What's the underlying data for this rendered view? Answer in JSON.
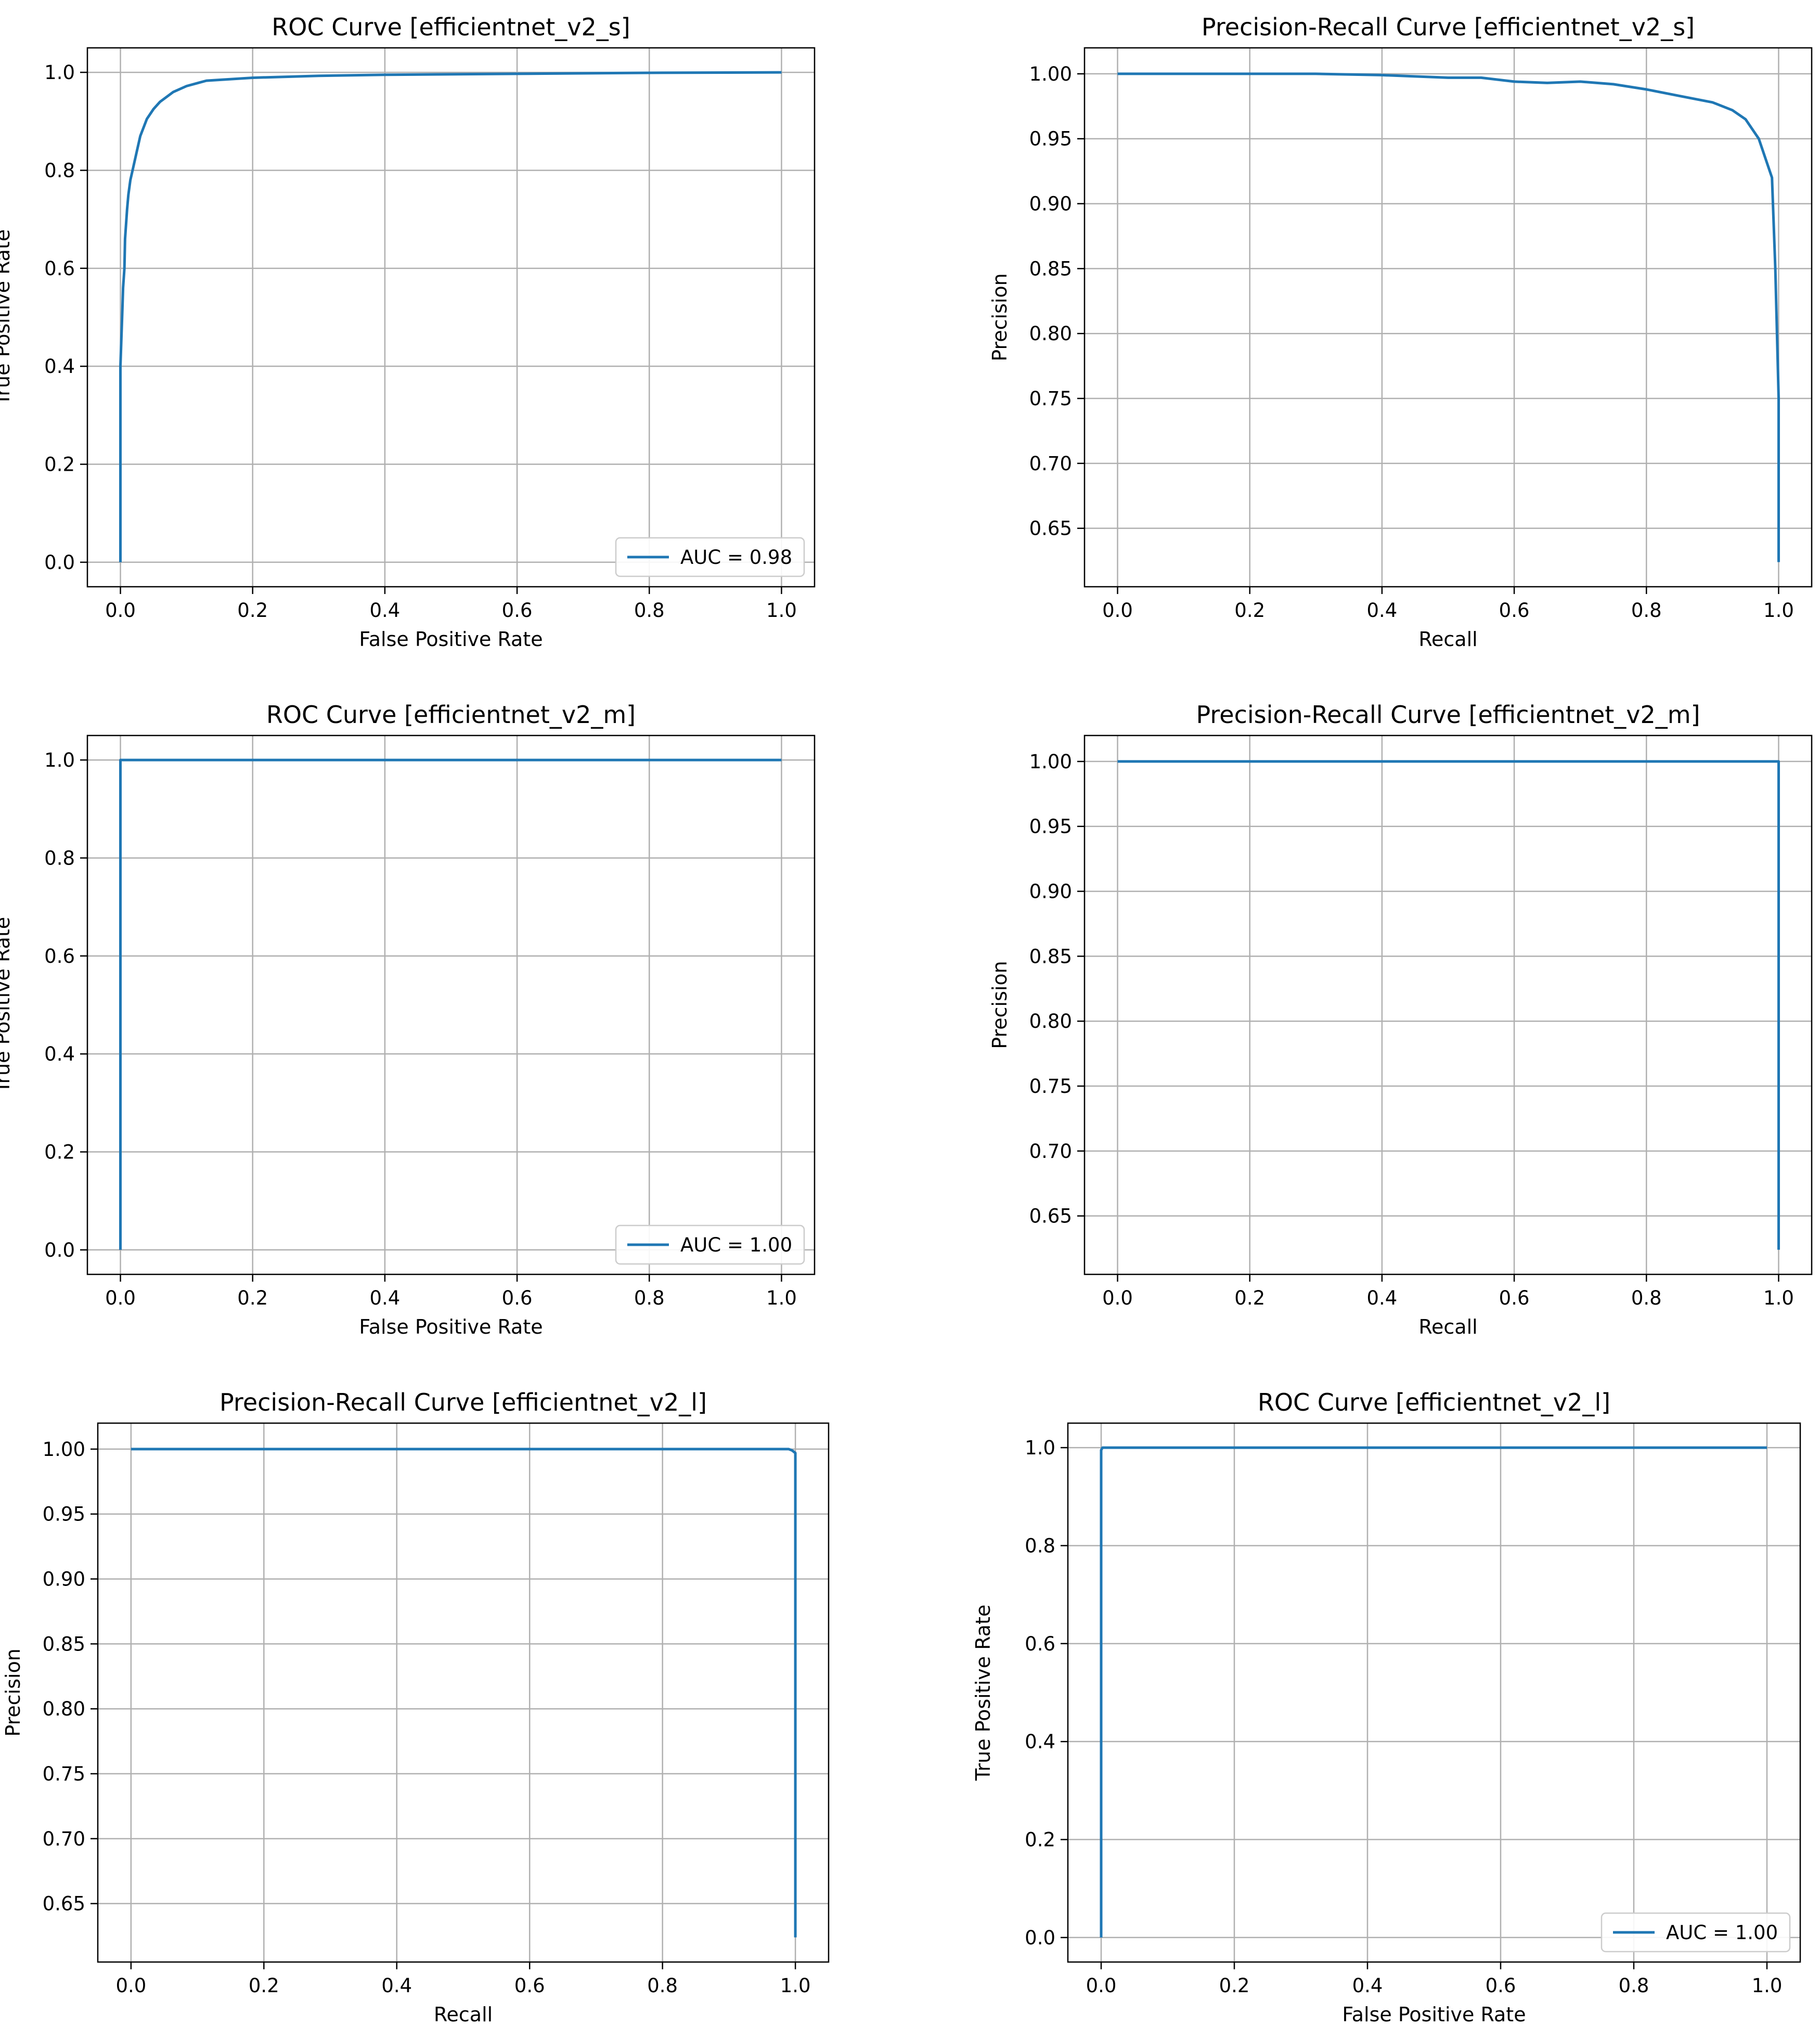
{
  "figure": {
    "background": "#ffffff",
    "line_color": "#1f77b4",
    "grid_color": "#b0b0b0"
  },
  "chart_data": [
    {
      "type": "line",
      "title": "ROC Curve [efficientnet_v2_s]",
      "xlabel": "False Positive Rate",
      "ylabel": "True Positive Rate",
      "xlim": [
        -0.05,
        1.05
      ],
      "ylim": [
        -0.05,
        1.05
      ],
      "xticks": [
        0.0,
        0.2,
        0.4,
        0.6,
        0.8,
        1.0
      ],
      "xtick_labels": [
        "0.0",
        "0.2",
        "0.4",
        "0.6",
        "0.8",
        "1.0"
      ],
      "yticks": [
        0.0,
        0.2,
        0.4,
        0.6,
        0.8,
        1.0
      ],
      "ytick_labels": [
        "0.0",
        "0.2",
        "0.4",
        "0.6",
        "0.8",
        "1.0"
      ],
      "grid": true,
      "legend_position": "lower-right",
      "series": [
        {
          "name": "AUC = 0.98",
          "color": "#1f77b4",
          "x": [
            0,
            0,
            0.003,
            0.004,
            0.006,
            0.007,
            0.01,
            0.012,
            0.015,
            0.02,
            0.025,
            0.03,
            0.04,
            0.05,
            0.06,
            0.08,
            0.1,
            0.13,
            0.2,
            0.3,
            0.4,
            0.6,
            0.8,
            1.0
          ],
          "y": [
            0,
            0.4,
            0.52,
            0.56,
            0.6,
            0.66,
            0.72,
            0.75,
            0.78,
            0.81,
            0.84,
            0.87,
            0.905,
            0.925,
            0.94,
            0.96,
            0.972,
            0.983,
            0.989,
            0.993,
            0.995,
            0.997,
            0.999,
            1.0
          ]
        }
      ]
    },
    {
      "type": "line",
      "title": "Precision-Recall Curve [efficientnet_v2_s]",
      "xlabel": "Recall",
      "ylabel": "Precision",
      "xlim": [
        -0.05,
        1.05
      ],
      "ylim": [
        0.605,
        1.02
      ],
      "xticks": [
        0.0,
        0.2,
        0.4,
        0.6,
        0.8,
        1.0
      ],
      "xtick_labels": [
        "0.0",
        "0.2",
        "0.4",
        "0.6",
        "0.8",
        "1.0"
      ],
      "yticks": [
        0.65,
        0.7,
        0.75,
        0.8,
        0.85,
        0.9,
        0.95,
        1.0
      ],
      "ytick_labels": [
        "0.65",
        "0.70",
        "0.75",
        "0.80",
        "0.85",
        "0.90",
        "0.95",
        "1.00"
      ],
      "grid": true,
      "series": [
        {
          "color": "#1f77b4",
          "x": [
            0,
            0.3,
            0.4,
            0.5,
            0.55,
            0.6,
            0.65,
            0.7,
            0.75,
            0.8,
            0.85,
            0.9,
            0.93,
            0.95,
            0.97,
            0.98,
            0.99,
            0.995,
            1.0,
            1.0
          ],
          "y": [
            1.0,
            1.0,
            0.999,
            0.997,
            0.997,
            0.994,
            0.993,
            0.994,
            0.992,
            0.988,
            0.983,
            0.978,
            0.972,
            0.965,
            0.95,
            0.935,
            0.92,
            0.85,
            0.75,
            0.624
          ]
        }
      ]
    },
    {
      "type": "line",
      "title": "ROC Curve [efficientnet_v2_m]",
      "xlabel": "False Positive Rate",
      "ylabel": "True Positive Rate",
      "xlim": [
        -0.05,
        1.05
      ],
      "ylim": [
        -0.05,
        1.05
      ],
      "xticks": [
        0.0,
        0.2,
        0.4,
        0.6,
        0.8,
        1.0
      ],
      "xtick_labels": [
        "0.0",
        "0.2",
        "0.4",
        "0.6",
        "0.8",
        "1.0"
      ],
      "yticks": [
        0.0,
        0.2,
        0.4,
        0.6,
        0.8,
        1.0
      ],
      "ytick_labels": [
        "0.0",
        "0.2",
        "0.4",
        "0.6",
        "0.8",
        "1.0"
      ],
      "grid": true,
      "legend_position": "lower-right",
      "series": [
        {
          "name": "AUC = 1.00",
          "color": "#1f77b4",
          "x": [
            0,
            0,
            1.0
          ],
          "y": [
            0,
            1.0,
            1.0
          ]
        }
      ]
    },
    {
      "type": "line",
      "title": "Precision-Recall Curve [efficientnet_v2_m]",
      "xlabel": "Recall",
      "ylabel": "Precision",
      "xlim": [
        -0.05,
        1.05
      ],
      "ylim": [
        0.605,
        1.02
      ],
      "xticks": [
        0.0,
        0.2,
        0.4,
        0.6,
        0.8,
        1.0
      ],
      "xtick_labels": [
        "0.0",
        "0.2",
        "0.4",
        "0.6",
        "0.8",
        "1.0"
      ],
      "yticks": [
        0.65,
        0.7,
        0.75,
        0.8,
        0.85,
        0.9,
        0.95,
        1.0
      ],
      "ytick_labels": [
        "0.65",
        "0.70",
        "0.75",
        "0.80",
        "0.85",
        "0.90",
        "0.95",
        "1.00"
      ],
      "grid": true,
      "series": [
        {
          "color": "#1f77b4",
          "x": [
            0,
            1.0,
            1.0
          ],
          "y": [
            1.0,
            1.0,
            0.624
          ]
        }
      ]
    },
    {
      "type": "line",
      "title": "Precision-Recall Curve [efficientnet_v2_l]",
      "xlabel": "Recall",
      "ylabel": "Precision",
      "xlim": [
        -0.05,
        1.05
      ],
      "ylim": [
        0.605,
        1.02
      ],
      "xticks": [
        0.0,
        0.2,
        0.4,
        0.6,
        0.8,
        1.0
      ],
      "xtick_labels": [
        "0.0",
        "0.2",
        "0.4",
        "0.6",
        "0.8",
        "1.0"
      ],
      "yticks": [
        0.65,
        0.7,
        0.75,
        0.8,
        0.85,
        0.9,
        0.95,
        1.0
      ],
      "ytick_labels": [
        "0.65",
        "0.70",
        "0.75",
        "0.80",
        "0.85",
        "0.90",
        "0.95",
        "1.00"
      ],
      "grid": true,
      "series": [
        {
          "color": "#1f77b4",
          "x": [
            0,
            0.99,
            0.995,
            1.0,
            1.0
          ],
          "y": [
            1.0,
            1.0,
            0.999,
            0.997,
            0.624
          ]
        }
      ]
    },
    {
      "type": "line",
      "title": "ROC Curve [efficientnet_v2_l]",
      "xlabel": "False Positive Rate",
      "ylabel": "True Positive Rate",
      "xlim": [
        -0.05,
        1.05
      ],
      "ylim": [
        -0.05,
        1.05
      ],
      "xticks": [
        0.0,
        0.2,
        0.4,
        0.6,
        0.8,
        1.0
      ],
      "xtick_labels": [
        "0.0",
        "0.2",
        "0.4",
        "0.6",
        "0.8",
        "1.0"
      ],
      "yticks": [
        0.0,
        0.2,
        0.4,
        0.6,
        0.8,
        1.0
      ],
      "ytick_labels": [
        "0.0",
        "0.2",
        "0.4",
        "0.6",
        "0.8",
        "1.0"
      ],
      "grid": true,
      "legend_position": "lower-right",
      "series": [
        {
          "name": "AUC = 1.00",
          "color": "#1f77b4",
          "x": [
            0,
            0,
            0.002,
            1.0
          ],
          "y": [
            0,
            0.995,
            1.0,
            1.0
          ]
        }
      ]
    }
  ]
}
